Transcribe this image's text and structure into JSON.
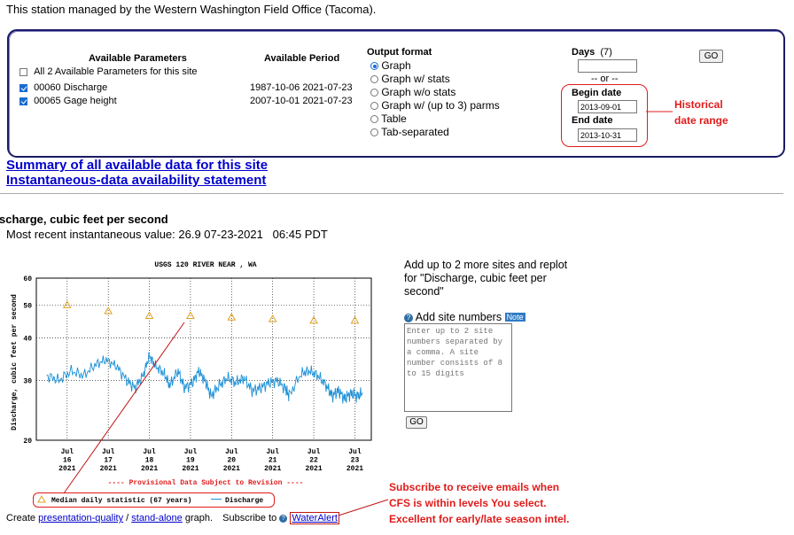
{
  "station_note": "This station managed by the Western Washington Field Office (Tacoma).",
  "params": {
    "header_available": "Available Parameters",
    "header_period": "Available Period",
    "items": [
      {
        "label": "All 2 Available Parameters for this site",
        "period": "",
        "checked": false
      },
      {
        "label": "00060 Discharge",
        "period": "1987-10-06 2021-07-23",
        "checked": true
      },
      {
        "label": "00065 Gage height",
        "period": "2007-10-01 2021-07-23",
        "checked": true
      }
    ]
  },
  "output": {
    "header": "Output format",
    "options": [
      {
        "label": "Graph",
        "selected": true
      },
      {
        "label": "Graph w/ stats",
        "selected": false
      },
      {
        "label": "Graph w/o stats",
        "selected": false
      },
      {
        "label": "Graph w/ (up to 3) parms",
        "selected": false
      },
      {
        "label": "Table",
        "selected": false
      },
      {
        "label": "Tab-separated",
        "selected": false
      }
    ]
  },
  "dates": {
    "days_label": "Days",
    "days_hint": "(7)",
    "days_value": "",
    "or_label": "-- or --",
    "begin_label": "Begin date",
    "begin_value": "2013-09-01",
    "end_label": "End date",
    "end_value": "2013-10-31",
    "go": "GO"
  },
  "annotations": {
    "historical": "Historical date range",
    "historical_line1": "Historical",
    "historical_line2": "date range",
    "subscribe_line1": "Subscribe to receive emails when",
    "subscribe_line2": "CFS is within levels You select.",
    "subscribe_line3": "Excellent for early/late season intel."
  },
  "links": {
    "summary": "Summary of all available data for this site",
    "instantaneous": "Instantaneous-data availability statement"
  },
  "section": {
    "title": "scharge, cubic feet per second",
    "recent": "Most recent instantaneous value: 26.9 07-23-2021   06:45 PDT"
  },
  "chart_data": {
    "type": "line",
    "title": "USGS 120        RIVER NEAR        , WA",
    "ylabel": "Discharge, cubic feet per second",
    "ylim": [
      20,
      60
    ],
    "yscale": "log",
    "yticks": [
      "60",
      "50",
      "40",
      "30",
      "20"
    ],
    "ytick_values": [
      60,
      50,
      40,
      30,
      20
    ],
    "xticks": [
      {
        "mon": "Jul",
        "day": "16",
        "year": "2021"
      },
      {
        "mon": "Jul",
        "day": "17",
        "year": "2021"
      },
      {
        "mon": "Jul",
        "day": "18",
        "year": "2021"
      },
      {
        "mon": "Jul",
        "day": "19",
        "year": "2021"
      },
      {
        "mon": "Jul",
        "day": "20",
        "year": "2021"
      },
      {
        "mon": "Jul",
        "day": "21",
        "year": "2021"
      },
      {
        "mon": "Jul",
        "day": "22",
        "year": "2021"
      },
      {
        "mon": "Jul",
        "day": "23",
        "year": "2021"
      }
    ],
    "median": [
      {
        "x": 16,
        "y": 50
      },
      {
        "x": 17,
        "y": 48
      },
      {
        "x": 18,
        "y": 46.5
      },
      {
        "x": 19,
        "y": 46.5
      },
      {
        "x": 20,
        "y": 46
      },
      {
        "x": 21,
        "y": 45.5
      },
      {
        "x": 22,
        "y": 45
      },
      {
        "x": 23,
        "y": 45
      }
    ],
    "discharge": [
      {
        "x": 15.5,
        "y": 31
      },
      {
        "x": 15.8,
        "y": 30
      },
      {
        "x": 16.1,
        "y": 32
      },
      {
        "x": 16.4,
        "y": 31
      },
      {
        "x": 16.7,
        "y": 33.5
      },
      {
        "x": 16.95,
        "y": 34.5
      },
      {
        "x": 17.2,
        "y": 33
      },
      {
        "x": 17.45,
        "y": 30
      },
      {
        "x": 17.65,
        "y": 28.5
      },
      {
        "x": 17.85,
        "y": 31
      },
      {
        "x": 18.0,
        "y": 35.5
      },
      {
        "x": 18.15,
        "y": 33
      },
      {
        "x": 18.35,
        "y": 31.5
      },
      {
        "x": 18.5,
        "y": 29
      },
      {
        "x": 18.7,
        "y": 32
      },
      {
        "x": 18.85,
        "y": 28.5
      },
      {
        "x": 19.05,
        "y": 29.5
      },
      {
        "x": 19.2,
        "y": 32
      },
      {
        "x": 19.35,
        "y": 30
      },
      {
        "x": 19.5,
        "y": 27
      },
      {
        "x": 19.7,
        "y": 29
      },
      {
        "x": 19.9,
        "y": 30.5
      },
      {
        "x": 20.1,
        "y": 29.5
      },
      {
        "x": 20.3,
        "y": 30.5
      },
      {
        "x": 20.5,
        "y": 28
      },
      {
        "x": 20.7,
        "y": 28.5
      },
      {
        "x": 20.9,
        "y": 29.5
      },
      {
        "x": 21.1,
        "y": 30
      },
      {
        "x": 21.3,
        "y": 28.5
      },
      {
        "x": 21.4,
        "y": 27
      },
      {
        "x": 21.7,
        "y": 31.5
      },
      {
        "x": 21.9,
        "y": 32
      },
      {
        "x": 22.1,
        "y": 31
      },
      {
        "x": 22.3,
        "y": 29
      },
      {
        "x": 22.45,
        "y": 27
      },
      {
        "x": 22.6,
        "y": 28
      },
      {
        "x": 22.75,
        "y": 26.5
      },
      {
        "x": 22.9,
        "y": 27.5
      },
      {
        "x": 23.05,
        "y": 27
      },
      {
        "x": 23.2,
        "y": 27.5
      }
    ],
    "footer": "---- Provisional Data Subject to Revision ----",
    "legend": [
      {
        "name": "Median daily statistic (67 years)",
        "marker": "triangle",
        "color": "#e0a020"
      },
      {
        "name": "Discharge",
        "marker": "line",
        "color": "#1a8fd6"
      }
    ],
    "grid": true,
    "colors": {
      "median": "#e0a020",
      "discharge": "#1a8fd6",
      "footer": "#e01b1b",
      "axis": "#000000"
    }
  },
  "sidepanel": {
    "line1": "Add up to 2 more sites and replot",
    "line2": "for \"Discharge, cubic feet per",
    "line3": "second\"",
    "add_label": "Add site numbers",
    "note_badge": "Note",
    "textarea_placeholder": "Enter up to 2 site numbers separated by a comma. A site number consists of 8 to 15 digits",
    "go": "GO"
  },
  "footer": {
    "create": "Create",
    "presentation": "presentation-quality",
    "slash": "/",
    "standalone": "stand-alone",
    "graph": "graph.",
    "subscribe": "Subscribe to",
    "wateralert": "WaterAlert"
  },
  "icons": {
    "help": "help-circle-icon"
  }
}
